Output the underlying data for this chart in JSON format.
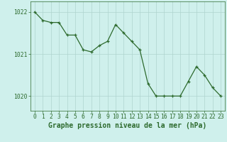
{
  "x": [
    0,
    1,
    2,
    3,
    4,
    5,
    6,
    7,
    8,
    9,
    10,
    11,
    12,
    13,
    14,
    15,
    16,
    17,
    18,
    19,
    20,
    21,
    22,
    23
  ],
  "y": [
    1022.0,
    1021.8,
    1021.75,
    1021.75,
    1021.45,
    1021.45,
    1021.1,
    1021.05,
    1021.2,
    1021.3,
    1021.7,
    1021.5,
    1021.3,
    1021.1,
    1020.3,
    1020.0,
    1020.0,
    1020.0,
    1020.0,
    1020.35,
    1020.7,
    1020.5,
    1020.2,
    1020.0
  ],
  "line_color": "#2d6a2d",
  "marker": "+",
  "background_color": "#cff0ec",
  "grid_color": "#aed4ce",
  "xlabel": "Graphe pression niveau de la mer (hPa)",
  "xlabel_color": "#2d6a2d",
  "tick_color": "#2d6a2d",
  "ylabel_values": [
    1020,
    1021,
    1022
  ],
  "ylim": [
    1019.65,
    1022.25
  ],
  "xlim": [
    -0.5,
    23.5
  ],
  "tick_label_fontsize": 5.8,
  "xlabel_fontsize": 7.0
}
